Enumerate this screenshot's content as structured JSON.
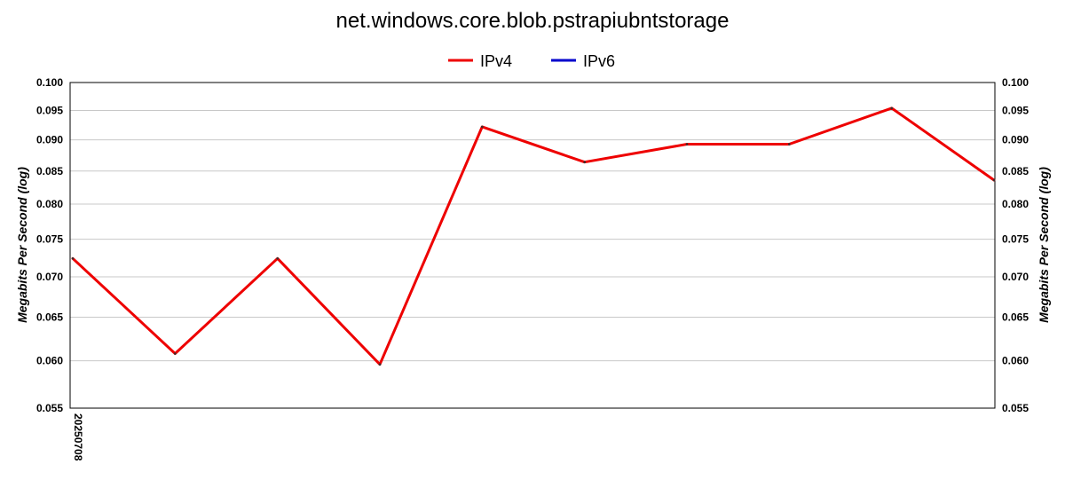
{
  "chart_data": {
    "type": "line",
    "title": "net.windows.core.blob.pstrapiubntstorage",
    "ylabel": "Megabits Per Second (log)",
    "ylabel_right": "Megabits Per Second (log)",
    "yscale": "log",
    "ylim": [
      0.055,
      0.1
    ],
    "yticks": [
      "0.100",
      "0.095",
      "0.090",
      "0.085",
      "0.080",
      "0.075",
      "0.070",
      "0.065",
      "0.060",
      "0.055"
    ],
    "xticks": [
      "20250708"
    ],
    "grid": true,
    "legend_position": "top-center",
    "series": [
      {
        "name": "IPv4",
        "color": "#ee0000",
        "values": [
          0.0724,
          0.0608,
          0.0724,
          0.0596,
          0.0922,
          0.0864,
          0.0893,
          0.0893,
          0.0954,
          0.0836
        ]
      },
      {
        "name": "IPv6",
        "color": "#0000cc",
        "values": []
      }
    ]
  }
}
